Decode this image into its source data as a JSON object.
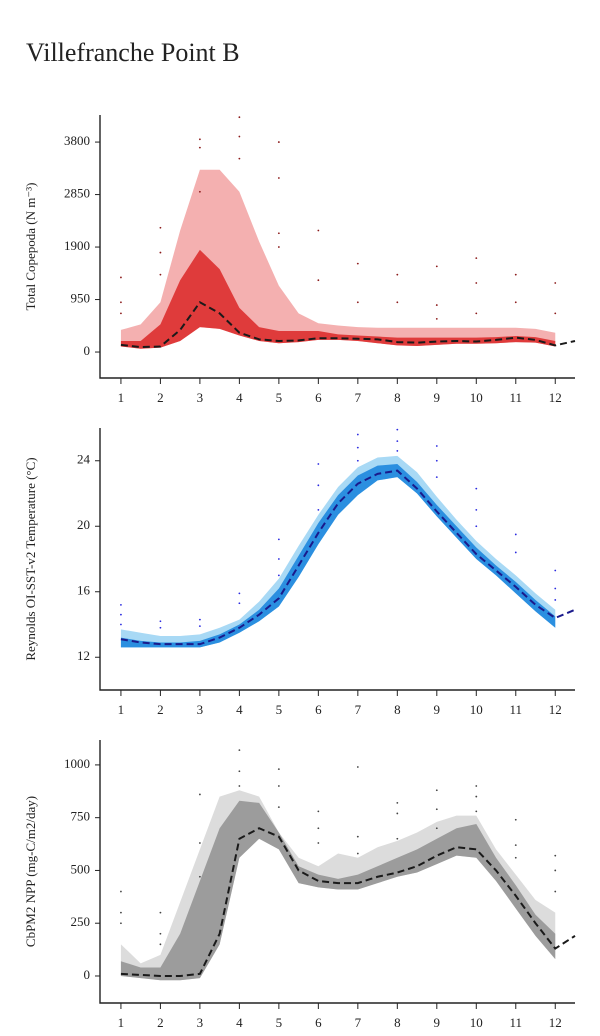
{
  "title": "Villefranche Point B",
  "chart_data": [
    {
      "type": "band",
      "ylabel": "Total Copepoda (N m⁻³)",
      "x": [
        1,
        1.5,
        2,
        2.5,
        3,
        3.5,
        4,
        4.5,
        5,
        5.5,
        6,
        6.5,
        7,
        7.5,
        8,
        8.5,
        9,
        9.5,
        10,
        10.5,
        11,
        11.5,
        12,
        12.5
      ],
      "xlim": [
        0.47,
        12.5
      ],
      "xticks": [
        1,
        2,
        3,
        4,
        5,
        6,
        7,
        8,
        9,
        10,
        11,
        12
      ],
      "ylim": [
        -470,
        4290
      ],
      "yticks": [
        0,
        950,
        1900,
        2850,
        3800
      ],
      "bands": [
        {
          "color": "#f4b0b0",
          "upper": [
            400,
            500,
            900,
            2200,
            3300,
            3300,
            2900,
            2000,
            1200,
            700,
            520,
            480,
            450,
            440,
            440,
            440,
            440,
            440,
            440,
            440,
            440,
            420,
            350,
            null
          ],
          "lower": [
            100,
            60,
            80,
            200,
            450,
            420,
            300,
            200,
            160,
            180,
            220,
            220,
            200,
            160,
            120,
            110,
            130,
            150,
            150,
            160,
            180,
            170,
            100,
            null
          ]
        },
        {
          "color": "#df3b3b",
          "upper": [
            200,
            200,
            500,
            1300,
            1850,
            1500,
            800,
            450,
            380,
            380,
            380,
            320,
            300,
            280,
            260,
            260,
            260,
            260,
            260,
            270,
            290,
            270,
            200,
            null
          ],
          "lower": [
            100,
            60,
            80,
            200,
            450,
            420,
            300,
            200,
            160,
            180,
            220,
            220,
            200,
            160,
            120,
            110,
            130,
            150,
            150,
            160,
            180,
            170,
            100,
            null
          ]
        }
      ],
      "line": {
        "color": "#1a1a1a",
        "values": [
          130,
          90,
          100,
          400,
          900,
          700,
          350,
          230,
          200,
          210,
          250,
          250,
          240,
          230,
          180,
          170,
          190,
          200,
          190,
          220,
          260,
          220,
          120,
          200
        ]
      },
      "points": {
        "color": "#8b1a1a",
        "x": [
          1,
          1,
          1,
          2,
          2,
          2,
          3,
          3,
          3,
          4,
          4,
          4,
          5,
          5,
          5,
          5,
          6,
          6,
          7,
          7,
          8,
          8,
          9,
          9,
          9,
          10,
          10,
          10,
          11,
          11,
          12,
          12
        ],
        "y": [
          1350,
          900,
          700,
          2250,
          1800,
          1400,
          3850,
          3700,
          2900,
          4250,
          3900,
          3500,
          3800,
          3150,
          2150,
          1900,
          2200,
          1300,
          1600,
          900,
          1400,
          900,
          1550,
          850,
          600,
          1700,
          1250,
          700,
          1400,
          900,
          1250,
          700
        ]
      }
    },
    {
      "type": "band",
      "ylabel": "Reynolds OI-SST-v2 Temperature (°C)",
      "x": [
        1,
        1.5,
        2,
        2.5,
        3,
        3.5,
        4,
        4.5,
        5,
        5.5,
        6,
        6.5,
        7,
        7.5,
        8,
        8.5,
        9,
        9.5,
        10,
        10.5,
        11,
        11.5,
        12,
        12.5
      ],
      "xlim": [
        0.47,
        12.5
      ],
      "xticks": [
        1,
        2,
        3,
        4,
        5,
        6,
        7,
        8,
        9,
        10,
        11,
        12
      ],
      "ylim": [
        10,
        26
      ],
      "yticks": [
        12,
        16,
        20,
        24
      ],
      "bands": [
        {
          "color": "#a8d9f5",
          "upper": [
            13.7,
            13.5,
            13.3,
            13.3,
            13.4,
            13.8,
            14.3,
            15.4,
            16.8,
            18.8,
            20.7,
            22.4,
            23.6,
            24.2,
            24.3,
            23.3,
            21.8,
            20.4,
            19.1,
            18.0,
            17.0,
            15.9,
            14.9,
            null
          ],
          "lower": [
            12.6,
            12.6,
            12.6,
            12.6,
            12.6,
            12.9,
            13.5,
            14.2,
            15.1,
            16.9,
            18.9,
            20.7,
            21.9,
            22.8,
            23.0,
            22.0,
            20.6,
            19.3,
            18.0,
            17.0,
            15.9,
            14.8,
            13.8,
            null
          ]
        },
        {
          "color": "#2b8fe0",
          "upper": [
            13.2,
            13.0,
            12.9,
            12.9,
            13.0,
            13.4,
            14.0,
            14.9,
            16.2,
            18.2,
            20.2,
            21.9,
            23.1,
            23.7,
            23.8,
            22.7,
            21.3,
            20.0,
            18.7,
            17.6,
            16.6,
            15.5,
            14.5,
            null
          ],
          "lower": [
            12.6,
            12.6,
            12.6,
            12.6,
            12.6,
            12.9,
            13.5,
            14.2,
            15.1,
            16.9,
            18.9,
            20.7,
            21.9,
            22.8,
            23.0,
            22.0,
            20.6,
            19.3,
            18.0,
            17.0,
            15.9,
            14.8,
            13.8,
            null
          ]
        }
      ],
      "line": {
        "color": "#1a1a8c",
        "values": [
          13.1,
          12.9,
          12.8,
          12.8,
          12.8,
          13.2,
          13.8,
          14.6,
          15.6,
          17.6,
          19.6,
          21.4,
          22.6,
          23.2,
          23.4,
          22.3,
          20.9,
          19.6,
          18.3,
          17.3,
          16.3,
          15.2,
          14.4,
          14.9
        ]
      },
      "points": {
        "color": "#2a2ae0",
        "x": [
          1,
          1,
          1,
          2,
          2,
          3,
          3,
          4,
          4,
          5,
          5,
          5,
          6,
          6,
          6,
          7,
          7,
          7,
          8,
          8,
          8,
          9,
          9,
          9,
          10,
          10,
          10,
          11,
          11,
          12,
          12,
          12
        ],
        "y": [
          15.2,
          14.6,
          14.0,
          14.2,
          13.8,
          14.3,
          13.9,
          15.9,
          15.3,
          19.2,
          18.0,
          17.0,
          23.8,
          22.5,
          21.0,
          25.6,
          24.8,
          24.0,
          25.9,
          25.2,
          24.6,
          24.9,
          24.0,
          23.0,
          22.3,
          21.0,
          20.0,
          19.5,
          18.4,
          17.3,
          16.2,
          15.5
        ]
      }
    },
    {
      "type": "band",
      "ylabel": "CbPM2 NPP (mg-C/m2/day)",
      "x": [
        1,
        1.5,
        2,
        2.5,
        3,
        3.5,
        4,
        4.5,
        5,
        5.5,
        6,
        6.5,
        7,
        7.5,
        8,
        8.5,
        9,
        9.5,
        10,
        10.5,
        11,
        11.5,
        12,
        12.5
      ],
      "xlim": [
        0.47,
        12.5
      ],
      "xticks": [
        1,
        2,
        3,
        4,
        5,
        6,
        7,
        8,
        9,
        10,
        11,
        12
      ],
      "ylim": [
        -128,
        1118
      ],
      "yticks": [
        0,
        250,
        500,
        750,
        1000
      ],
      "bands": [
        {
          "color": "#dcdcdc",
          "upper": [
            150,
            60,
            100,
            350,
            600,
            850,
            880,
            850,
            680,
            560,
            520,
            580,
            560,
            610,
            640,
            680,
            730,
            760,
            760,
            600,
            480,
            360,
            300,
            null
          ],
          "lower": [
            0,
            -10,
            -20,
            -20,
            -10,
            150,
            560,
            650,
            600,
            440,
            420,
            410,
            410,
            440,
            470,
            490,
            530,
            570,
            560,
            450,
            320,
            190,
            80,
            null
          ]
        },
        {
          "color": "#9c9c9c",
          "upper": [
            70,
            40,
            40,
            200,
            450,
            700,
            830,
            820,
            680,
            520,
            480,
            460,
            480,
            520,
            560,
            600,
            650,
            700,
            720,
            560,
            430,
            290,
            200,
            null
          ],
          "lower": [
            0,
            -10,
            -20,
            -20,
            -10,
            150,
            560,
            650,
            600,
            440,
            420,
            410,
            410,
            440,
            470,
            490,
            530,
            570,
            560,
            450,
            320,
            190,
            80,
            null
          ]
        }
      ],
      "line": {
        "color": "#1a1a1a",
        "values": [
          10,
          5,
          0,
          0,
          10,
          200,
          650,
          700,
          660,
          500,
          450,
          440,
          440,
          470,
          490,
          520,
          570,
          610,
          600,
          500,
          380,
          250,
          130,
          190
        ]
      },
      "points": {
        "color": "#444444",
        "x": [
          1,
          1,
          1,
          2,
          2,
          2,
          3,
          3,
          3,
          4,
          4,
          4,
          5,
          5,
          5,
          6,
          6,
          6,
          7,
          7,
          7,
          8,
          8,
          8,
          9,
          9,
          9,
          10,
          10,
          10,
          11,
          11,
          11,
          12,
          12,
          12
        ],
        "y": [
          400,
          300,
          250,
          300,
          200,
          150,
          860,
          630,
          470,
          1070,
          970,
          900,
          980,
          900,
          800,
          780,
          700,
          630,
          990,
          660,
          580,
          820,
          770,
          650,
          880,
          790,
          700,
          900,
          850,
          780,
          740,
          620,
          560,
          570,
          500,
          400
        ]
      }
    }
  ]
}
